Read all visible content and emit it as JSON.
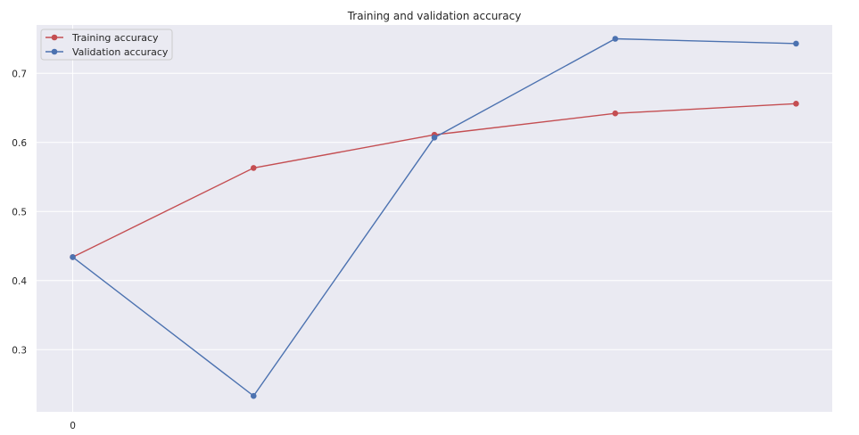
{
  "chart_data": {
    "type": "line",
    "title": "Training and validation accuracy",
    "xlabel": "",
    "ylabel": "",
    "x": [
      0,
      1,
      2,
      3,
      4
    ],
    "x_tick_values": [
      0
    ],
    "x_tick_labels": [
      "0"
    ],
    "xlim": [
      -0.2,
      4.2
    ],
    "ylim": [
      0.21,
      0.77
    ],
    "y_tick_values": [
      0.3,
      0.4,
      0.5,
      0.6,
      0.7
    ],
    "y_tick_labels": [
      "0.3",
      "0.4",
      "0.5",
      "0.6",
      "0.7"
    ],
    "grid": true,
    "legend_position": "top-left",
    "series": [
      {
        "name": "Training accuracy",
        "color": "#c44e52",
        "marker": "circle",
        "values": [
          0.434,
          0.563,
          0.611,
          0.642,
          0.656
        ]
      },
      {
        "name": "Validation accuracy",
        "color": "#4c72b0",
        "marker": "circle",
        "values": [
          0.434,
          0.233,
          0.607,
          0.75,
          0.743
        ]
      }
    ]
  }
}
